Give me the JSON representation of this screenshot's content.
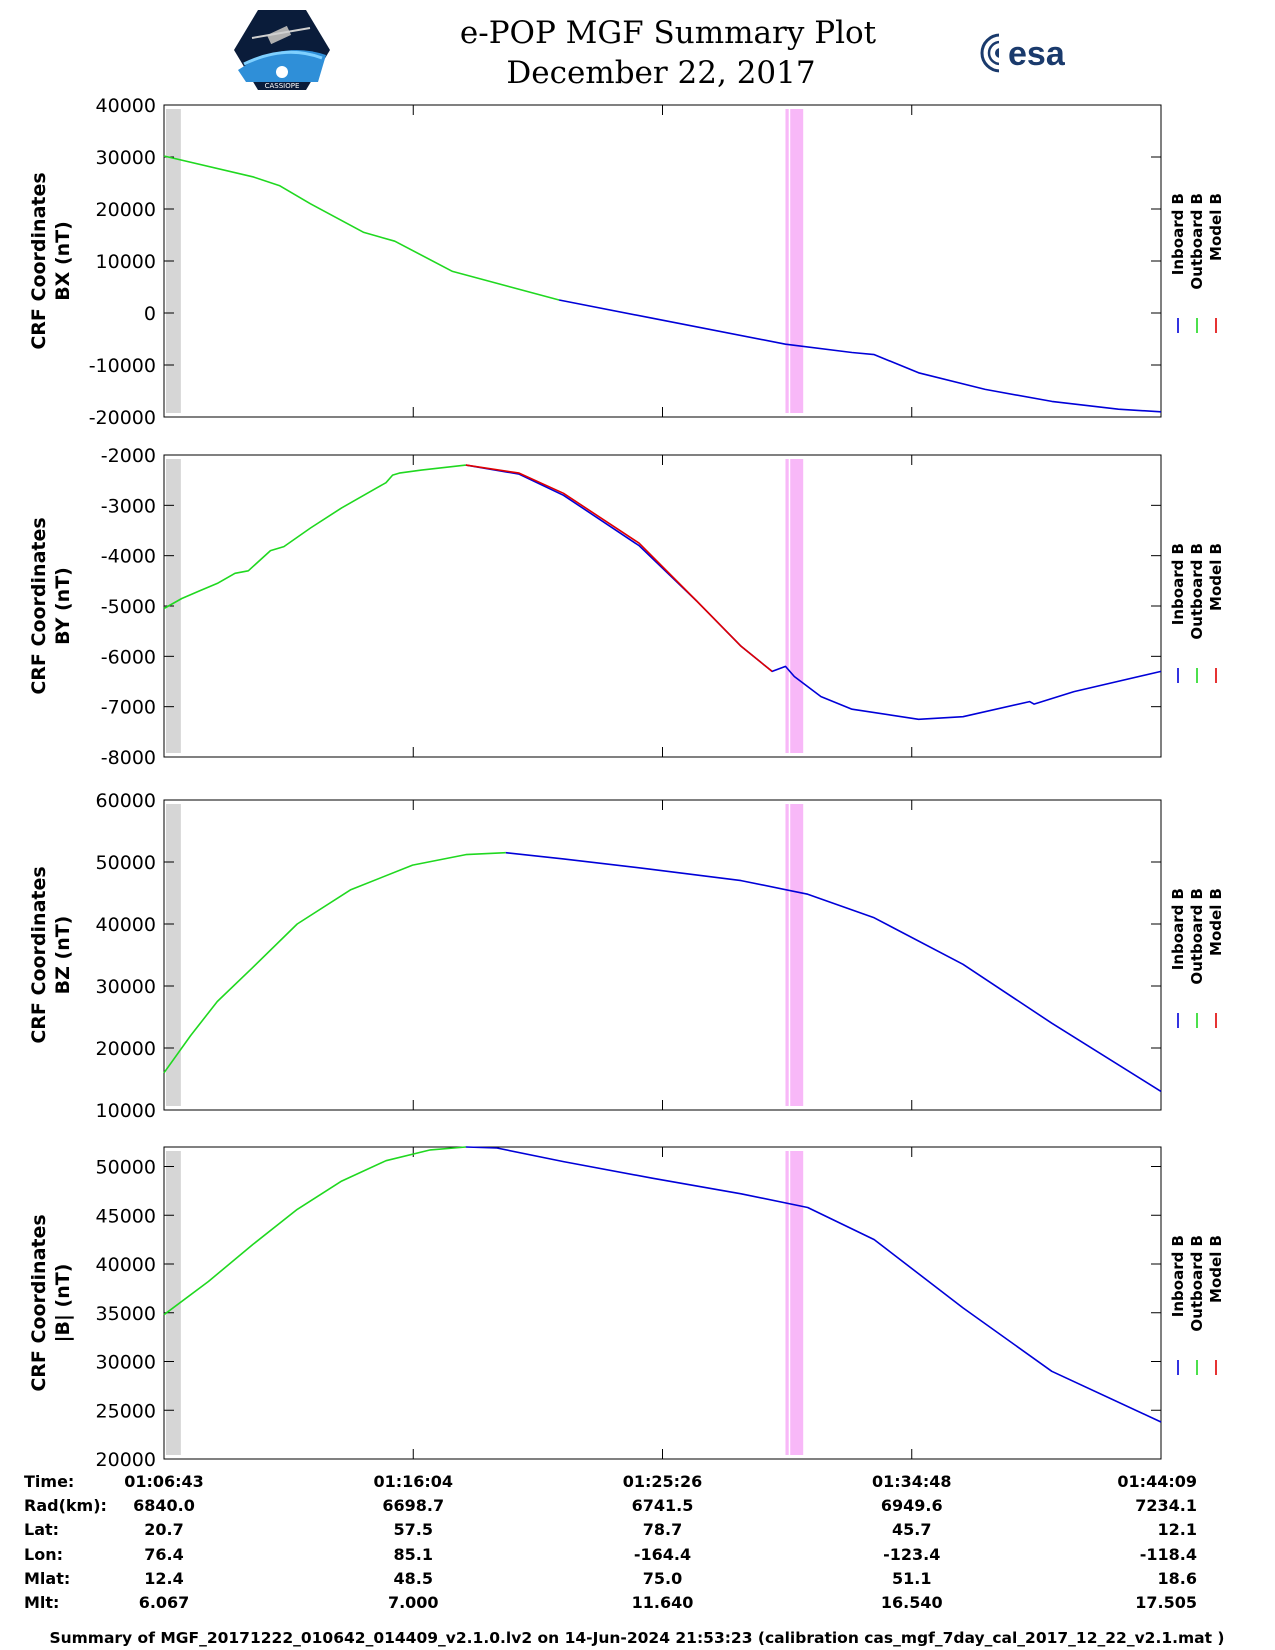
{
  "header": {
    "title_line1": "e-POP MGF Summary Plot",
    "title_line2": "December 22, 2017",
    "logo_left_text": "CASSIOPE",
    "logo_right_text": "esa"
  },
  "colors": {
    "inboard": "#0000d8",
    "outboard": "#20d820",
    "model": "#e00000",
    "gray_band": "#d6d6d6",
    "pink_band": "#f8b8f8"
  },
  "legend_items": [
    {
      "name": "Inboard B",
      "color": "#0000d8"
    },
    {
      "name": "Outboard B",
      "color": "#20d820"
    },
    {
      "name": "Model B",
      "color": "#e00000"
    }
  ],
  "chart_data": [
    {
      "type": "line",
      "ylabel_line1": "CRF Coordinates",
      "ylabel_line2": "BX (nT)",
      "ylim": [
        -20000,
        40000
      ],
      "yticks": [
        40000,
        30000,
        20000,
        10000,
        0,
        -10000,
        -20000
      ],
      "ytick_labels": [
        "40000",
        "30000",
        "20000",
        "10000",
        "0",
        "-10000",
        "-20000"
      ],
      "x_range_s": [
        0,
        2246
      ],
      "series": [
        {
          "name": "Outboard B",
          "x": [
            0,
            200,
            260,
            330,
            450,
            520,
            650,
            890
          ],
          "values": [
            30200,
            26200,
            24500,
            21000,
            15500,
            13800,
            8000,
            2500
          ]
        },
        {
          "name": "Inboard B",
          "x": [
            890,
            1100,
            1400,
            1550,
            1600,
            1700,
            1850,
            2000,
            2150,
            2246
          ],
          "values": [
            2500,
            -1000,
            -6000,
            -7600,
            -8000,
            -11500,
            -14700,
            -17000,
            -18500,
            -19000
          ]
        }
      ]
    },
    {
      "type": "line",
      "ylabel_line1": "CRF Coordinates",
      "ylabel_line2": "BY (nT)",
      "ylim": [
        -8000,
        -2000
      ],
      "yticks": [
        -2000,
        -3000,
        -4000,
        -5000,
        -6000,
        -7000,
        -8000
      ],
      "ytick_labels": [
        "-2000",
        "-3000",
        "-4000",
        "-5000",
        "-6000",
        "-7000",
        "-8000"
      ],
      "x_range_s": [
        0,
        2246
      ],
      "series": [
        {
          "name": "Outboard B",
          "x": [
            0,
            40,
            80,
            120,
            160,
            190,
            240,
            270,
            330,
            400,
            480,
            500,
            515,
            530,
            580,
            680
          ],
          "values": [
            -5050,
            -4850,
            -4700,
            -4550,
            -4350,
            -4300,
            -3900,
            -3820,
            -3450,
            -3050,
            -2650,
            -2550,
            -2400,
            -2360,
            -2300,
            -2200
          ]
        },
        {
          "name": "Inboard B",
          "x": [
            680,
            800,
            900,
            1070,
            1200,
            1300,
            1370,
            1400,
            1420,
            1480,
            1550,
            1700,
            1800,
            1950,
            1960,
            2050,
            2246
          ],
          "values": [
            -2200,
            -2380,
            -2800,
            -3800,
            -4900,
            -5800,
            -6300,
            -6200,
            -6400,
            -6800,
            -7050,
            -7250,
            -7200,
            -6900,
            -6950,
            -6700,
            -6300
          ]
        },
        {
          "name": "Model B",
          "x": [
            680,
            800,
            900,
            1070,
            1200,
            1300,
            1370
          ],
          "values": [
            -2200,
            -2360,
            -2760,
            -3750,
            -4900,
            -5800,
            -6300
          ]
        }
      ]
    },
    {
      "type": "line",
      "ylabel_line1": "CRF Coordinates",
      "ylabel_line2": "BZ (nT)",
      "ylim": [
        10000,
        60000
      ],
      "yticks": [
        60000,
        50000,
        40000,
        30000,
        20000,
        10000
      ],
      "ytick_labels": [
        "60000",
        "50000",
        "40000",
        "30000",
        "20000",
        "10000"
      ],
      "x_range_s": [
        0,
        2246
      ],
      "series": [
        {
          "name": "Outboard B",
          "x": [
            0,
            60,
            120,
            200,
            300,
            420,
            560,
            680,
            770
          ],
          "values": [
            16000,
            22000,
            27500,
            33000,
            40000,
            45500,
            49500,
            51200,
            51500
          ]
        },
        {
          "name": "Inboard B",
          "x": [
            770,
            900,
            1100,
            1300,
            1450,
            1600,
            1800,
            2000,
            2246
          ],
          "values": [
            51500,
            50500,
            48800,
            47000,
            44800,
            41000,
            33500,
            24000,
            13000
          ]
        }
      ]
    },
    {
      "type": "line",
      "ylabel_line1": "CRF Coordinates",
      "ylabel_line2": "|B| (nT)",
      "ylim": [
        20000,
        52000
      ],
      "yticks": [
        50000,
        45000,
        40000,
        35000,
        30000,
        25000,
        20000
      ],
      "ytick_labels": [
        "50000",
        "45000",
        "40000",
        "35000",
        "30000",
        "25000",
        "20000"
      ],
      "x_range_s": [
        0,
        2246
      ],
      "series": [
        {
          "name": "Outboard B",
          "x": [
            0,
            100,
            200,
            300,
            400,
            500,
            600,
            680
          ],
          "values": [
            34800,
            38200,
            42000,
            45600,
            48500,
            50600,
            51700,
            52000
          ]
        },
        {
          "name": "Inboard B",
          "x": [
            680,
            750,
            900,
            1100,
            1300,
            1450,
            1600,
            1800,
            2000,
            2246
          ],
          "values": [
            52000,
            51900,
            50500,
            48800,
            47200,
            45800,
            42500,
            35500,
            29000,
            23800
          ]
        }
      ]
    }
  ],
  "shaded_regions": {
    "gray_x_s": [
      0,
      38
    ],
    "pink_x_s": [
      1400,
      1440
    ]
  },
  "ephemeris": {
    "row_labels": [
      "Time:",
      "Rad(km):",
      "Lat:",
      "Lon:",
      "Mlat:",
      "Mlt:"
    ],
    "columns": [
      {
        "x_s": 0,
        "values": [
          "01:06:43",
          "6840.0",
          "20.7",
          "76.4",
          "12.4",
          "6.067"
        ]
      },
      {
        "x_s": 561.5,
        "values": [
          "01:16:04",
          "6698.7",
          "57.5",
          "85.1",
          "48.5",
          "7.000"
        ]
      },
      {
        "x_s": 1123,
        "values": [
          "01:25:26",
          "6741.5",
          "78.7",
          "-164.4",
          "75.0",
          "11.640"
        ]
      },
      {
        "x_s": 1684.5,
        "values": [
          "01:34:48",
          "6949.6",
          "45.7",
          "-123.4",
          "51.1",
          "16.540"
        ]
      },
      {
        "x_s": 2246,
        "values": [
          "01:44:09",
          "7234.1",
          "12.1",
          "-118.4",
          "18.6",
          "17.505"
        ]
      }
    ]
  },
  "footer": "Summary of MGF_20171222_010642_014409_v2.1.0.lv2 on 14-Jun-2024 21:53:23 (calibration cas_mgf_7day_cal_2017_12_22_v2.1.mat )"
}
